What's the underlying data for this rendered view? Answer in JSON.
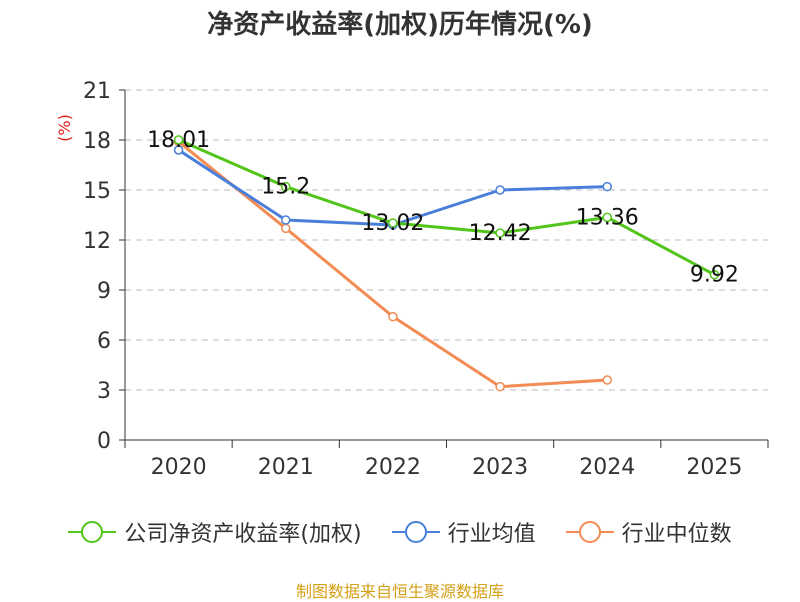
{
  "chart_data": {
    "type": "line",
    "title": "净资产收益率(加权)历年情况(%)",
    "ylabel": "(%)",
    "xlabel": "",
    "categories": [
      "2020",
      "2021",
      "2022",
      "2023",
      "2024",
      "2025"
    ],
    "ylim": [
      0,
      21
    ],
    "yticks": [
      0,
      3,
      6,
      9,
      12,
      15,
      18,
      21
    ],
    "grid": true,
    "legend_position": "bottom",
    "series": [
      {
        "name": "公司净资产收益率(加权)",
        "color": "#52c41a",
        "values": [
          18.01,
          15.2,
          13.02,
          12.42,
          13.36,
          9.92
        ],
        "labels": [
          "18.01",
          "15.2",
          "13.02",
          "12.42",
          "13.36",
          "9.92"
        ]
      },
      {
        "name": "行业均值",
        "color": "#4a7fd9",
        "values": [
          17.4,
          13.2,
          12.9,
          15.0,
          15.2,
          null
        ]
      },
      {
        "name": "行业中位数",
        "color": "#f28c54",
        "values": [
          17.9,
          12.7,
          7.4,
          3.2,
          3.6,
          null
        ]
      }
    ]
  },
  "source": "制图数据来自恒生聚源数据库"
}
